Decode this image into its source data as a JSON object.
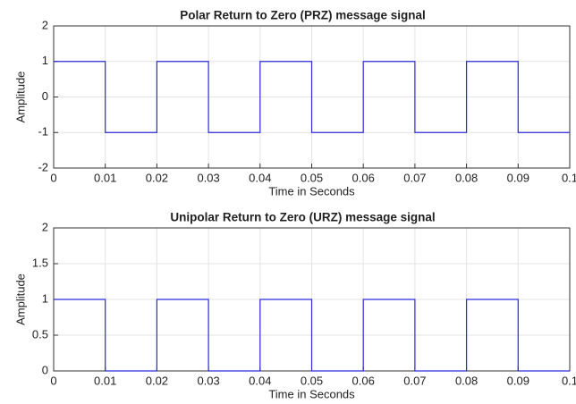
{
  "chart_data": [
    {
      "type": "line",
      "title": "Polar Return to Zero (PRZ) message signal",
      "xlabel": "Time in Seconds",
      "ylabel": "Amplitude",
      "x": [
        0,
        0.01,
        0.01,
        0.02,
        0.02,
        0.03,
        0.03,
        0.04,
        0.04,
        0.05,
        0.05,
        0.06,
        0.06,
        0.07,
        0.07,
        0.08,
        0.08,
        0.09,
        0.09,
        0.1
      ],
      "series": [
        {
          "name": "PRZ",
          "color": "#2b2bd9",
          "values": [
            1,
            1,
            -1,
            -1,
            1,
            1,
            -1,
            -1,
            1,
            1,
            -1,
            -1,
            1,
            1,
            -1,
            -1,
            1,
            1,
            -1,
            -1
          ]
        }
      ],
      "xlim": [
        0,
        0.1
      ],
      "xticks": [
        0,
        0.01,
        0.02,
        0.03,
        0.04,
        0.05,
        0.06,
        0.07,
        0.08,
        0.09,
        0.1
      ],
      "ylim": [
        -2,
        2
      ],
      "yticks": [
        -2,
        -1,
        0,
        1,
        2
      ],
      "grid": true
    },
    {
      "type": "line",
      "title": "Unipolar Return to Zero (URZ) message signal",
      "xlabel": "Time in Seconds",
      "ylabel": "Amplitude",
      "x": [
        0,
        0.01,
        0.01,
        0.02,
        0.02,
        0.03,
        0.03,
        0.04,
        0.04,
        0.05,
        0.05,
        0.06,
        0.06,
        0.07,
        0.07,
        0.08,
        0.08,
        0.09,
        0.09,
        0.1
      ],
      "series": [
        {
          "name": "URZ",
          "color": "#2b2bd9",
          "values": [
            1,
            1,
            0,
            0,
            1,
            1,
            0,
            0,
            1,
            1,
            0,
            0,
            1,
            1,
            0,
            0,
            1,
            1,
            0,
            0
          ]
        }
      ],
      "xlim": [
        0,
        0.1
      ],
      "xticks": [
        0,
        0.01,
        0.02,
        0.03,
        0.04,
        0.05,
        0.06,
        0.07,
        0.08,
        0.09,
        0.1
      ],
      "ylim": [
        0,
        2
      ],
      "yticks": [
        0,
        0.5,
        1,
        1.5,
        2
      ],
      "grid": true
    }
  ]
}
